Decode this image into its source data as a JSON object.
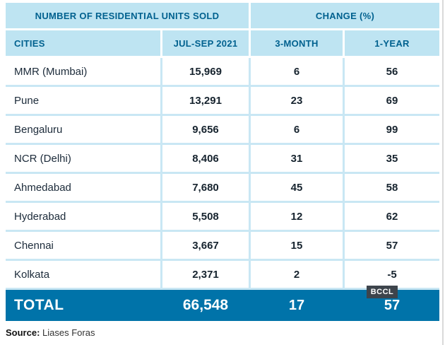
{
  "chart_data": {
    "type": "table",
    "title": "NUMBER OF RESIDENTIAL UNITS SOLD",
    "group_headers": [
      "NUMBER OF RESIDENTIAL UNITS SOLD",
      "CHANGE (%)"
    ],
    "columns": [
      "CITIES",
      "JUL-SEP 2021",
      "3-MONTH",
      "1-YEAR"
    ],
    "rows": [
      [
        "MMR (Mumbai)",
        "15,969",
        "6",
        "56"
      ],
      [
        "Pune",
        "13,291",
        "23",
        "69"
      ],
      [
        "Bengaluru",
        "9,656",
        "6",
        "99"
      ],
      [
        "NCR (Delhi)",
        "8,406",
        "31",
        "35"
      ],
      [
        "Ahmedabad",
        "7,680",
        "45",
        "58"
      ],
      [
        "Hyderabad",
        "5,508",
        "12",
        "62"
      ],
      [
        "Chennai",
        "3,667",
        "15",
        "57"
      ],
      [
        "Kolkata",
        "2,371",
        "2",
        "-5"
      ]
    ],
    "total": [
      "TOTAL",
      "66,548",
      "17",
      "57"
    ]
  },
  "source": {
    "label": "Source:",
    "value": "Liases Foras"
  },
  "watermark": "BCCL",
  "colors": {
    "header_bg": "#bee4f2",
    "header_text": "#00618f",
    "row_separator": "#c9e7f4",
    "body_text": "#1c2b3a",
    "number_text": "#17242f",
    "total_bg": "#0073a9",
    "total_text": "#ffffff",
    "watermark_bg": "#3d444c"
  }
}
